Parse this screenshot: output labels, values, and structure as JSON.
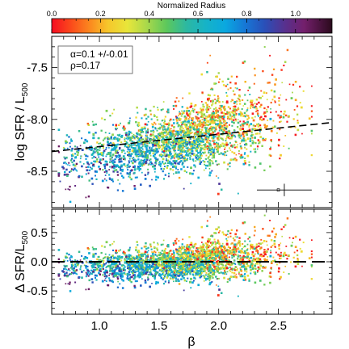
{
  "colorbar": {
    "label": "Normalized Radius",
    "ticks": [
      "0.0",
      "0.2",
      "0.4",
      "0.6",
      "0.8",
      "1.0"
    ],
    "tick_values": [
      0.0,
      0.2,
      0.4,
      0.6,
      0.8,
      1.0
    ],
    "range": [
      0.0,
      1.15
    ]
  },
  "annotation": {
    "alpha": "α=0.1 +/-0.01",
    "rho": "ρ=0.17"
  },
  "chart_data": [
    {
      "type": "scatter",
      "panel": "top",
      "xlabel": "",
      "ylabel": "log SFR / L500",
      "ylabel_parts": {
        "base": "log SFR / L",
        "sub": "500"
      },
      "xlim": [
        0.6,
        2.95
      ],
      "ylim": [
        -8.85,
        -7.2
      ],
      "yticks": [
        -8.5,
        -8.0,
        -7.5
      ],
      "ytick_labels": [
        "-8.5",
        "-8.0",
        "-7.5"
      ],
      "fit_line": {
        "x": [
          0.6,
          2.95
        ],
        "y": [
          -8.31,
          -8.03
        ],
        "style": "dashed"
      },
      "error_bar": {
        "x": 2.55,
        "y": -8.68,
        "x_err": 0.23,
        "y_err": 0.06
      },
      "points": {
        "x_range": [
          0.65,
          2.8
        ],
        "y_range": [
          -8.8,
          -7.35
        ],
        "note": "dense scatter of several thousand points colored by normalized radius"
      }
    },
    {
      "type": "scatter",
      "panel": "bottom",
      "xlabel": "β",
      "ylabel": "Δ SFR/L500",
      "ylabel_parts": {
        "base": "Δ SFR/L",
        "sub": "500"
      },
      "xlim": [
        0.6,
        2.95
      ],
      "ylim": [
        -0.9,
        0.9
      ],
      "yticks": [
        -0.5,
        0.0,
        0.5
      ],
      "ytick_labels": [
        "-0.5",
        "0.0",
        "0.5"
      ],
      "xticks": [
        1.0,
        1.5,
        2.0,
        2.5
      ],
      "xtick_labels": [
        "1.0",
        "1.5",
        "2.0",
        "2.5"
      ],
      "fit_line": {
        "x": [
          0.6,
          2.95
        ],
        "y": [
          0.0,
          0.0
        ],
        "style": "dashed"
      },
      "points": {
        "x_range": [
          0.65,
          2.8
        ],
        "y_range": [
          -0.75,
          0.8
        ],
        "note": "residual scatter colored by normalized radius"
      }
    }
  ]
}
